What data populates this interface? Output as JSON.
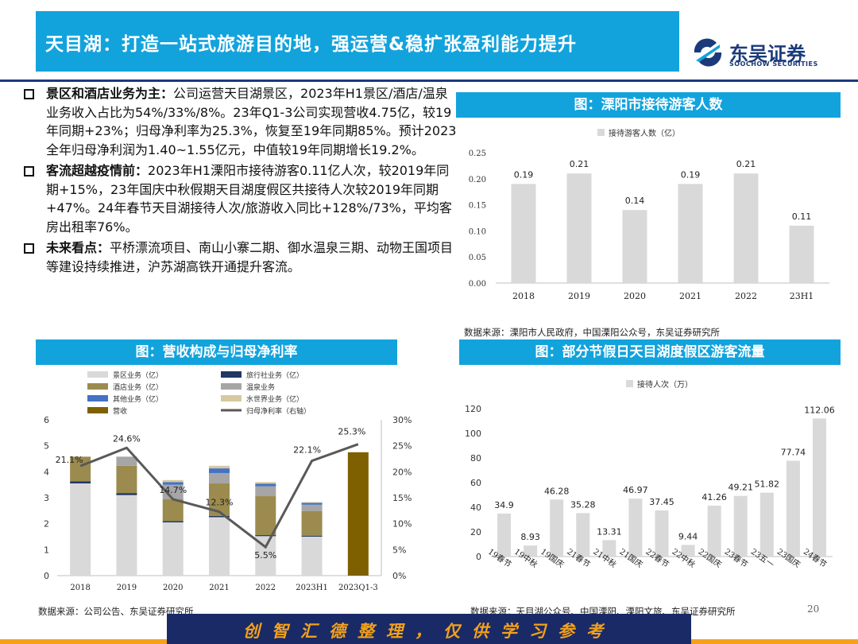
{
  "header": {
    "title": "天目湖：打造一站式旅游目的地，强运营&稳扩张盈利能力提升",
    "logo_cn": "东吴证券",
    "logo_en": "SOOCHOW SECURITIES"
  },
  "bullets": [
    {
      "head": "景区和酒店业务为主：",
      "body": "公司运营天目湖景区，2023年H1景区/酒店/温泉业务收入占比为54%/33%/8%。23年Q1-3公司实现营收4.75亿，较19年同期+23%；归母净利率为25.3%，恢复至19年同期85%。预计2023全年归母净利润为1.40~1.55亿元，中值较19年同期增长19.2%。"
    },
    {
      "head": "客流超越疫情前：",
      "body": "2023年H1溧阳市接待游客0.11亿人次，较2019年同期+15%，23年国庆中秋假期天目湖度假区共接待人次较2019年同期+47%。24年春节天目湖接待人次/旅游收入同比+128%/73%，平均客房出租率76%。"
    },
    {
      "head": "未来看点：",
      "body": "平桥漂流项目、南山小寨二期、御水温泉三期、动物王国项目等建设持续推进，沪苏湖高铁开通提升客流。"
    }
  ],
  "sections": {
    "tourists_title": "图：溧阳市接待游客人数",
    "tourists_source": "数据来源：溧阳市人民政府，中国溧阳公众号，东吴证券研究所",
    "revenue_title": "图：营收构成与归母净利率",
    "revenue_source": "数据来源：公司公告、东吴证券研究所",
    "holiday_title": "图：部分节假日天目湖度假区游客流量",
    "holiday_source": "数据来源：天目湖公众号、中国溧阳、溧阳文旅、东吴证券研究所"
  },
  "footer": {
    "banner": "创智汇德整理，仅供学习参考",
    "page_number": "20"
  },
  "colors": {
    "accent": "#12a3dd",
    "navy": "#1b3a7b",
    "bar_gray": "#d9d9d9",
    "scenic": "#d9d9d9",
    "travel_agency": "#1f3864",
    "hotel": "#9c8b4f",
    "hot_spring": "#a6a6a6",
    "other": "#4472c4",
    "water_world": "#d6c9a0",
    "revenue": "#7f6000",
    "margin_line": "#595959"
  },
  "chart_data": [
    {
      "type": "bar",
      "categories": [
        "2018",
        "2019",
        "2020",
        "2021",
        "2022",
        "23H1"
      ],
      "series": [
        {
          "name": "接待游客人数（亿）",
          "values": [
            0.19,
            0.21,
            0.14,
            0.19,
            0.21,
            0.11
          ]
        }
      ],
      "ylim": [
        0,
        0.25
      ],
      "yticks": [
        "0.00",
        "0.05",
        "0.10",
        "0.15",
        "0.20",
        "0.25"
      ],
      "data_labels": [
        "0.19",
        "0.21",
        "0.14",
        "0.19",
        "0.21",
        "0.11"
      ],
      "legend": "top"
    },
    {
      "type": "bar",
      "stacked": true,
      "categories": [
        "2018",
        "2019",
        "2020",
        "2021",
        "2022",
        "2023H1",
        "2023Q1-3"
      ],
      "series": [
        {
          "name": "景区业务（亿）",
          "values": [
            3.55,
            3.1,
            2.05,
            2.25,
            1.52,
            1.5,
            null
          ]
        },
        {
          "name": "旅行社业务（亿）",
          "values": [
            0.08,
            0.08,
            0.05,
            0.05,
            0.04,
            0.03,
            null
          ]
        },
        {
          "name": "酒店业务（亿）",
          "values": [
            0.95,
            1.05,
            0.85,
            1.25,
            1.5,
            0.95,
            null
          ]
        },
        {
          "name": "温泉业务",
          "values": [
            0,
            0.35,
            0.55,
            0.4,
            0.38,
            0.25,
            null
          ]
        },
        {
          "name": "其他业务（亿）",
          "values": [
            0,
            0,
            0.1,
            0.18,
            0.1,
            0.07,
            null
          ]
        },
        {
          "name": "水世界业务（亿）",
          "values": [
            0,
            0,
            0.08,
            0.1,
            0.06,
            0.03,
            null
          ]
        },
        {
          "name": "营收",
          "values": [
            null,
            null,
            null,
            null,
            null,
            null,
            4.75
          ]
        }
      ],
      "line": {
        "name": "归母净利率（右轴）",
        "values": [
          21.1,
          24.6,
          14.7,
          12.3,
          5.5,
          22.1,
          25.3
        ],
        "labels": [
          "21.1%",
          "24.6%",
          "14.7%",
          "12.3%",
          "5.5%",
          "22.1%",
          "25.3%"
        ]
      },
      "ylim": [
        0,
        6
      ],
      "yticks": [
        "0",
        "1",
        "2",
        "3",
        "4",
        "5",
        "6"
      ],
      "y2lim": [
        0,
        30
      ],
      "y2ticks": [
        "0%",
        "5%",
        "10%",
        "15%",
        "20%",
        "25%",
        "30%"
      ],
      "legend": "top"
    },
    {
      "type": "bar",
      "categories": [
        "19春节",
        "19中秋",
        "19国庆",
        "21春节",
        "21中秋",
        "21国庆",
        "22春节",
        "22中秋",
        "22国庆",
        "23春节",
        "23五一",
        "23国庆",
        "24春节"
      ],
      "series": [
        {
          "name": "接待人次（万）",
          "values": [
            34.9,
            8.93,
            46.28,
            35.28,
            13.31,
            46.97,
            37.45,
            9.44,
            41.26,
            49.21,
            51.82,
            77.74,
            112.06
          ]
        }
      ],
      "data_labels": [
        "34.9",
        "8.93",
        "46.28",
        "35.28",
        "13.31",
        "46.97",
        "37.45",
        "9.44",
        "41.26",
        "49.21",
        "51.82",
        "77.74",
        "112.06"
      ],
      "ylim": [
        0,
        120
      ],
      "yticks": [
        "0",
        "20",
        "40",
        "60",
        "80",
        "100",
        "120"
      ],
      "legend": "top"
    }
  ]
}
